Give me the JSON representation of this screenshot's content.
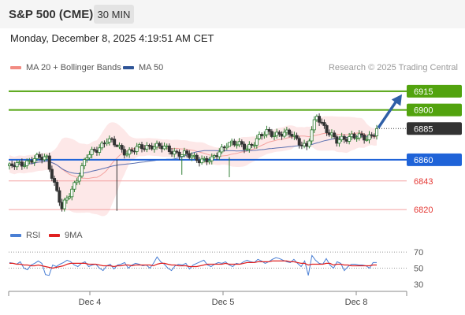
{
  "header": {
    "title": "S&P 500 (CME)",
    "timeframe": "30 MIN"
  },
  "datetime": "Monday, December 8, 2025 4:19:51 AM CET",
  "legend_main": [
    {
      "label": "MA 20 + Bollinger Bands",
      "color": "#f28b82"
    },
    {
      "label": "MA 50",
      "color": "#2f5597"
    }
  ],
  "legend_rsi": [
    {
      "label": "RSI",
      "color": "#4a7fd4"
    },
    {
      "label": "9MA",
      "color": "#e02020"
    }
  ],
  "credit": "Research © 2025 Trading Central",
  "colors": {
    "up": "#2e7d32",
    "down": "#333333",
    "target": "#52a30e",
    "pivot": "#1f63d8",
    "support": "#e53935",
    "last": "#333333",
    "band": "#fde4e4"
  },
  "chart_data": [
    {
      "type": "candlestick",
      "title": "S&P 500 (CME)",
      "timeframe": "30 MIN",
      "ylim": [
        6810,
        6925
      ],
      "x_ticks": [
        "Dec 4",
        "Dec 5",
        "Dec 8"
      ],
      "last_price": 6885,
      "levels": [
        {
          "value": 6915,
          "label": "6915",
          "kind": "target"
        },
        {
          "value": 6900,
          "label": "6900",
          "kind": "target"
        },
        {
          "value": 6860,
          "label": "6860",
          "kind": "pivot"
        },
        {
          "value": 6843,
          "label": "6843",
          "kind": "support"
        },
        {
          "value": 6820,
          "label": "6820",
          "kind": "support"
        }
      ],
      "forecast_arrow": {
        "from": 6885,
        "to": 6915
      },
      "segments": [
        {
          "n": 10,
          "close": 6860
        },
        {
          "n": 6,
          "close": 6862
        },
        {
          "n": 6,
          "close": 6820
        },
        {
          "n": 10,
          "close": 6862
        },
        {
          "n": 8,
          "close": 6876
        },
        {
          "n": 8,
          "close": 6866
        },
        {
          "n": 10,
          "close": 6872
        },
        {
          "n": 10,
          "close": 6866
        },
        {
          "n": 6,
          "close": 6862
        },
        {
          "n": 8,
          "close": 6859
        },
        {
          "n": 6,
          "close": 6874
        },
        {
          "n": 8,
          "close": 6870
        },
        {
          "n": 8,
          "close": 6882
        },
        {
          "n": 10,
          "close": 6880
        },
        {
          "n": 6,
          "close": 6870
        },
        {
          "n": 4,
          "close": 6895
        },
        {
          "n": 8,
          "close": 6874
        },
        {
          "n": 6,
          "close": 6880
        },
        {
          "n": 6,
          "close": 6876
        },
        {
          "n": 4,
          "close": 6885
        }
      ],
      "wicks": [
        {
          "i": 43,
          "high": 6860,
          "low": 6819
        },
        {
          "i": 69,
          "high": 6862,
          "low": 6848
        },
        {
          "i": 88,
          "high": 6862,
          "low": 6846
        },
        {
          "i": 148,
          "high": 6880,
          "low": 6859
        },
        {
          "i": 150,
          "high": 6903,
          "low": 6870
        },
        {
          "i": 152,
          "high": 6904,
          "low": 6868
        }
      ]
    },
    {
      "type": "line",
      "name": "RSI",
      "ylim": [
        25,
        80
      ],
      "y_ticks": [
        "70",
        "50",
        "30"
      ],
      "series": [
        {
          "name": "RSI",
          "points": [
            57,
            56,
            55,
            58,
            50,
            48,
            54,
            56,
            59,
            56,
            42,
            41,
            54,
            52,
            55,
            57,
            60,
            58,
            54,
            52,
            56,
            58,
            52,
            54,
            55,
            50,
            47,
            53,
            55,
            49,
            54,
            55,
            57,
            50,
            54,
            56,
            55,
            53,
            54,
            50,
            56,
            64,
            58,
            55,
            50,
            47,
            53,
            55,
            54,
            56,
            49,
            54,
            56,
            58,
            60,
            54,
            52,
            55,
            57,
            56,
            58,
            54,
            52,
            56,
            55,
            58,
            60,
            58,
            57,
            61,
            59,
            56,
            58,
            61,
            63,
            62,
            60,
            58,
            57,
            61,
            56,
            52,
            59,
            41,
            66,
            60,
            56,
            55,
            62,
            54,
            50,
            58,
            56,
            47,
            52,
            55,
            55,
            54,
            54,
            53,
            50,
            57,
            57
          ]
        },
        {
          "name": "9MA",
          "points": [
            56,
            56,
            55,
            55,
            54,
            54,
            53,
            53,
            54,
            53,
            52,
            51,
            50,
            51,
            52,
            53,
            55,
            56,
            56,
            56,
            56,
            56,
            55,
            55,
            55,
            54,
            53,
            53,
            53,
            52,
            53,
            53,
            54,
            54,
            53,
            54,
            54,
            54,
            54,
            54,
            53,
            55,
            56,
            56,
            55,
            54,
            54,
            53,
            53,
            53,
            52,
            52,
            52,
            53,
            54,
            55,
            55,
            55,
            55,
            55,
            56,
            55,
            55,
            55,
            55,
            56,
            57,
            57,
            57,
            58,
            58,
            58,
            58,
            59,
            59,
            59,
            59,
            59,
            58,
            58,
            57,
            56,
            56,
            54,
            55,
            55,
            55,
            55,
            56,
            56,
            54,
            55,
            55,
            54,
            54,
            53,
            53,
            53,
            53,
            53,
            53,
            54,
            54
          ]
        }
      ]
    }
  ]
}
